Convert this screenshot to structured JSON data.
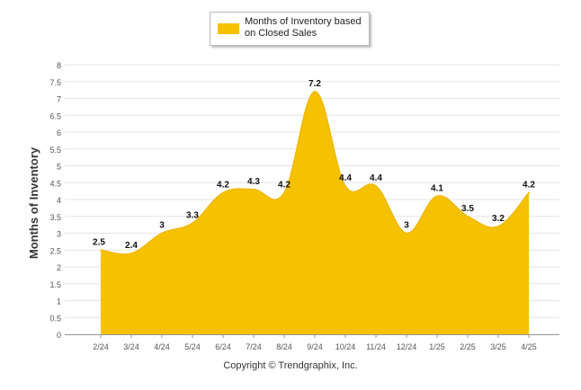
{
  "chart_data": {
    "type": "area",
    "ylabel": "Months of Inventory",
    "xlabel": "",
    "ylim": [
      0,
      8
    ],
    "y_ticks": [
      "0",
      "0.5",
      "1",
      "1.5",
      "2",
      "2.5",
      "3",
      "3.5",
      "4",
      "4.5",
      "5",
      "5.5",
      "6",
      "6.5",
      "7",
      "7.5",
      "8"
    ],
    "categories": [
      "2/24",
      "3/24",
      "4/24",
      "5/24",
      "6/24",
      "7/24",
      "8/24",
      "9/24",
      "10/24",
      "11/24",
      "12/24",
      "1/25",
      "2/25",
      "3/25",
      "4/25"
    ],
    "series": [
      {
        "name": "Months of Inventory based on Closed Sales",
        "values": [
          2.5,
          2.4,
          3,
          3.3,
          4.2,
          4.3,
          4.2,
          7.2,
          4.4,
          4.4,
          3,
          4.1,
          3.5,
          3.2,
          4.2
        ],
        "labels": [
          "2.5",
          "2.4",
          "3",
          "3.3",
          "4.2",
          "4.3",
          "4.2",
          "7.2",
          "4.4",
          "4.4",
          "3",
          "4.1",
          "3.5",
          "3.2",
          "4.2"
        ]
      }
    ],
    "legend": "top-center",
    "grid": true
  },
  "legend": {
    "label": "Months of Inventory based on Closed Sales"
  },
  "footer": {
    "copyright": "Copyright © Trendgraphix, Inc."
  },
  "colors": {
    "fill": "#f5c100",
    "grid": "#e4e4e4",
    "axis": "#999999"
  }
}
